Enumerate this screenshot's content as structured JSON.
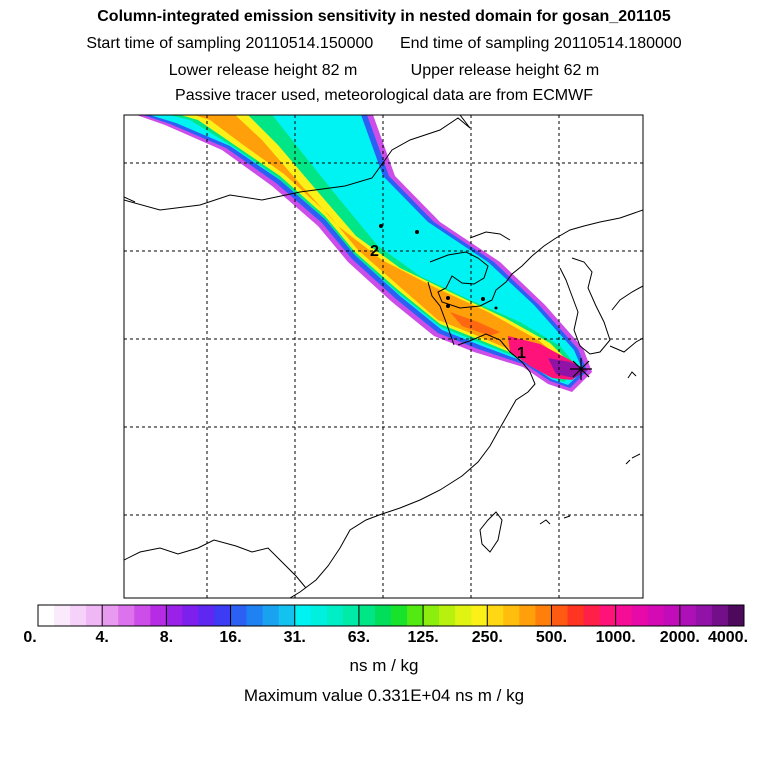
{
  "titles": {
    "line1": "Column-integrated emission sensitivity in nested domain for gosan_201105",
    "start_label": "Start time of sampling 20110514.150000",
    "end_label": "End time of sampling 20110514.180000",
    "lower_label": "Lower release height   82 m",
    "upper_label": "Upper release height   62 m",
    "line4": "Passive tracer used, meteorological data are from ECMWF"
  },
  "map": {
    "markers": [
      "1",
      "2"
    ],
    "receptor_symbol": "✳"
  },
  "colorbar": {
    "labels": [
      "0.",
      "4.",
      "8.",
      "16.",
      "31.",
      "63.",
      "125.",
      "250.",
      "500.",
      "1000.",
      "2000.",
      "4000."
    ],
    "colors": [
      "#ffffff",
      "#fbe9fc",
      "#f6d2fa",
      "#efb7f5",
      "#e89af0",
      "#dc73ec",
      "#cc4de8",
      "#b62ce4",
      "#9a22e8",
      "#7d20ee",
      "#5e28f2",
      "#3d3cf5",
      "#2c60f4",
      "#1f82f3",
      "#18a2f0",
      "#13c2ef",
      "#00f3f3",
      "#00f0e0",
      "#00eec6",
      "#00eaa8",
      "#00e687",
      "#00de5a",
      "#17e32a",
      "#52ea10",
      "#8cee0e",
      "#b9f10f",
      "#dff413",
      "#fbf018",
      "#ffd712",
      "#ffbd0d",
      "#ff9f0a",
      "#ff7f0a",
      "#ff5a12",
      "#ff3522",
      "#ff2047",
      "#ff1279",
      "#f60d96",
      "#e80aa8",
      "#d40ab4",
      "#c20cb9",
      "#ac10b6",
      "#9112a6",
      "#740f8a",
      "#4d0a5c"
    ],
    "unit": "ns m / kg",
    "max_value_text": "Maximum value  0.331E+04 ns m / kg"
  }
}
